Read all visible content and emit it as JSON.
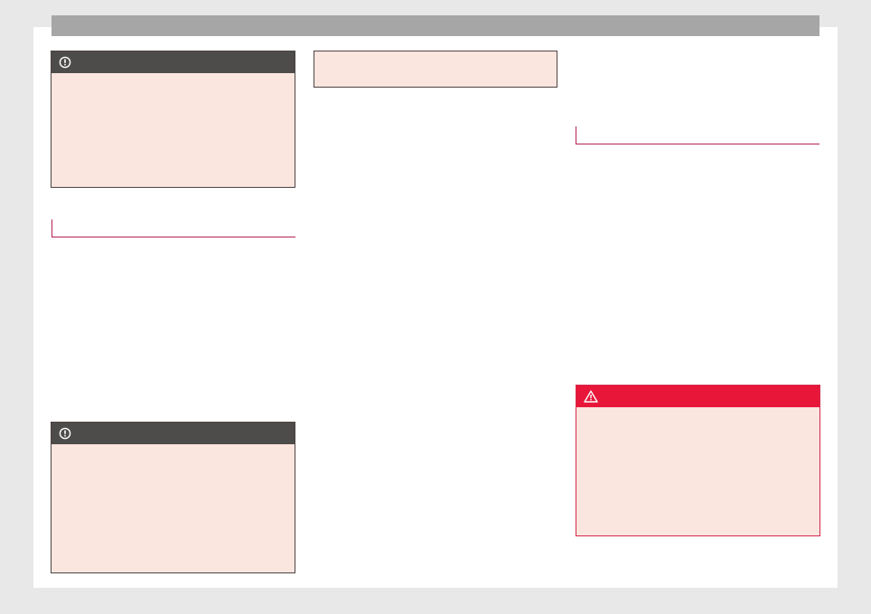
{
  "colors": {
    "page_background": "#e8e8e8",
    "header_bar": "#a6a6a6",
    "notice_header": "#4d4c4b",
    "box_fill": "#fbe5df",
    "warning_header": "#e8173a",
    "heading_rule": "#b3234f"
  },
  "notices": [
    {
      "type": "notice",
      "icon": "exclamation-circle-icon"
    },
    {
      "type": "notice",
      "icon": "exclamation-circle-icon"
    }
  ],
  "warning": {
    "type": "warning",
    "icon": "warning-triangle-icon"
  }
}
